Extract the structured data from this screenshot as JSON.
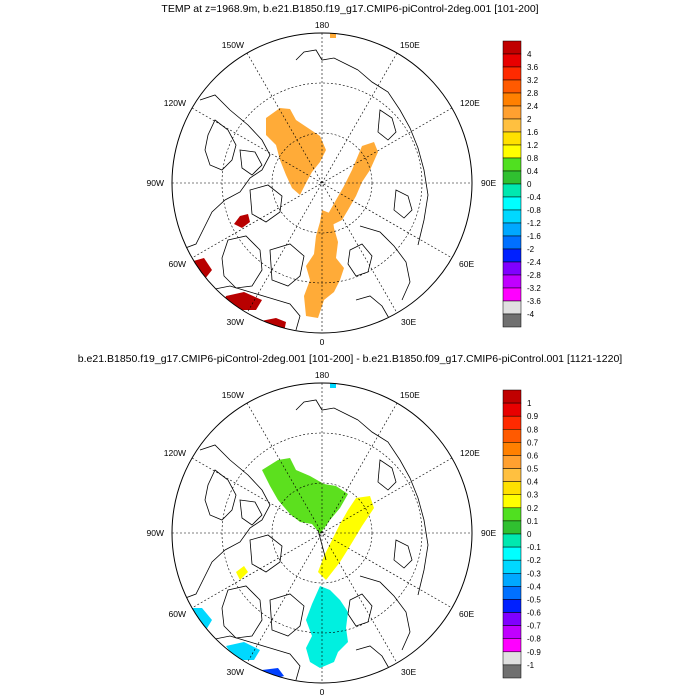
{
  "panel_top": {
    "title": "TEMP at z=1968.9m, b.e21.B1850.f19_g17.CMIP6-piControl-2deg.001 [101-200]",
    "lon_labels": {
      "180": "180",
      "150E": "150E",
      "120E": "120E",
      "90E": "90E",
      "60E": "60E",
      "30E": "30E",
      "0": "0",
      "30W": "30W",
      "60W": "60W",
      "90W": "90W",
      "120W": "120W",
      "150W": "150W"
    },
    "colorbar": {
      "labels": [
        "4",
        "3.6",
        "3.2",
        "2.8",
        "2.4",
        "2",
        "1.6",
        "1.2",
        "0.8",
        "0.4",
        "0",
        "-0.4",
        "-0.8",
        "-1.2",
        "-1.6",
        "-2",
        "-2.4",
        "-2.8",
        "-3.2",
        "-3.6",
        "-4"
      ],
      "colors": [
        "#c00000",
        "#e80000",
        "#ff2a00",
        "#ff5a00",
        "#ff8000",
        "#ffa030",
        "#ffc040",
        "#ffe000",
        "#ffff00",
        "#50e020",
        "#30c030",
        "#00e8b0",
        "#00ffff",
        "#00d8ff",
        "#00a8ff",
        "#0070ff",
        "#0020ff",
        "#8000ff",
        "#c000ff",
        "#ff00ff",
        "#e0e0e0",
        "#707070"
      ]
    }
  },
  "panel_bottom": {
    "title": "b.e21.B1850.f19_g17.CMIP6-piControl-2deg.001 [101-200] - b.e21.B1850.f09_g17.CMIP6-piControl.001 [1121-1220]",
    "lon_labels": {
      "180": "180",
      "150E": "150E",
      "120E": "120E",
      "90E": "90E",
      "60E": "60E",
      "30E": "30E",
      "0": "0",
      "30W": "30W",
      "60W": "60W",
      "90W": "90W",
      "120W": "120W",
      "150W": "150W"
    },
    "colorbar": {
      "labels": [
        "1",
        "0.9",
        "0.8",
        "0.7",
        "0.6",
        "0.5",
        "0.4",
        "0.3",
        "0.2",
        "0.1",
        "0",
        "-0.1",
        "-0.2",
        "-0.3",
        "-0.4",
        "-0.5",
        "-0.6",
        "-0.7",
        "-0.8",
        "-0.9",
        "-1"
      ],
      "colors": [
        "#c00000",
        "#e80000",
        "#ff2a00",
        "#ff5a00",
        "#ff8000",
        "#ffa030",
        "#ffc040",
        "#ffe000",
        "#ffff00",
        "#50e020",
        "#30c030",
        "#00e8b0",
        "#00ffff",
        "#00d8ff",
        "#00a8ff",
        "#0070ff",
        "#0020ff",
        "#8000ff",
        "#c000ff",
        "#ff00ff",
        "#e0e0e0",
        "#707070"
      ]
    }
  },
  "fill_colors": {
    "warm_top": "#ffab38",
    "hot_top": "#b80000",
    "green_bottom": "#5ce01e",
    "yellow_bottom": "#ffff00",
    "cyan_bottom": "#00f0e0",
    "lightblue_bottom": "#00d8ff",
    "blue_bottom": "#0040ff"
  }
}
